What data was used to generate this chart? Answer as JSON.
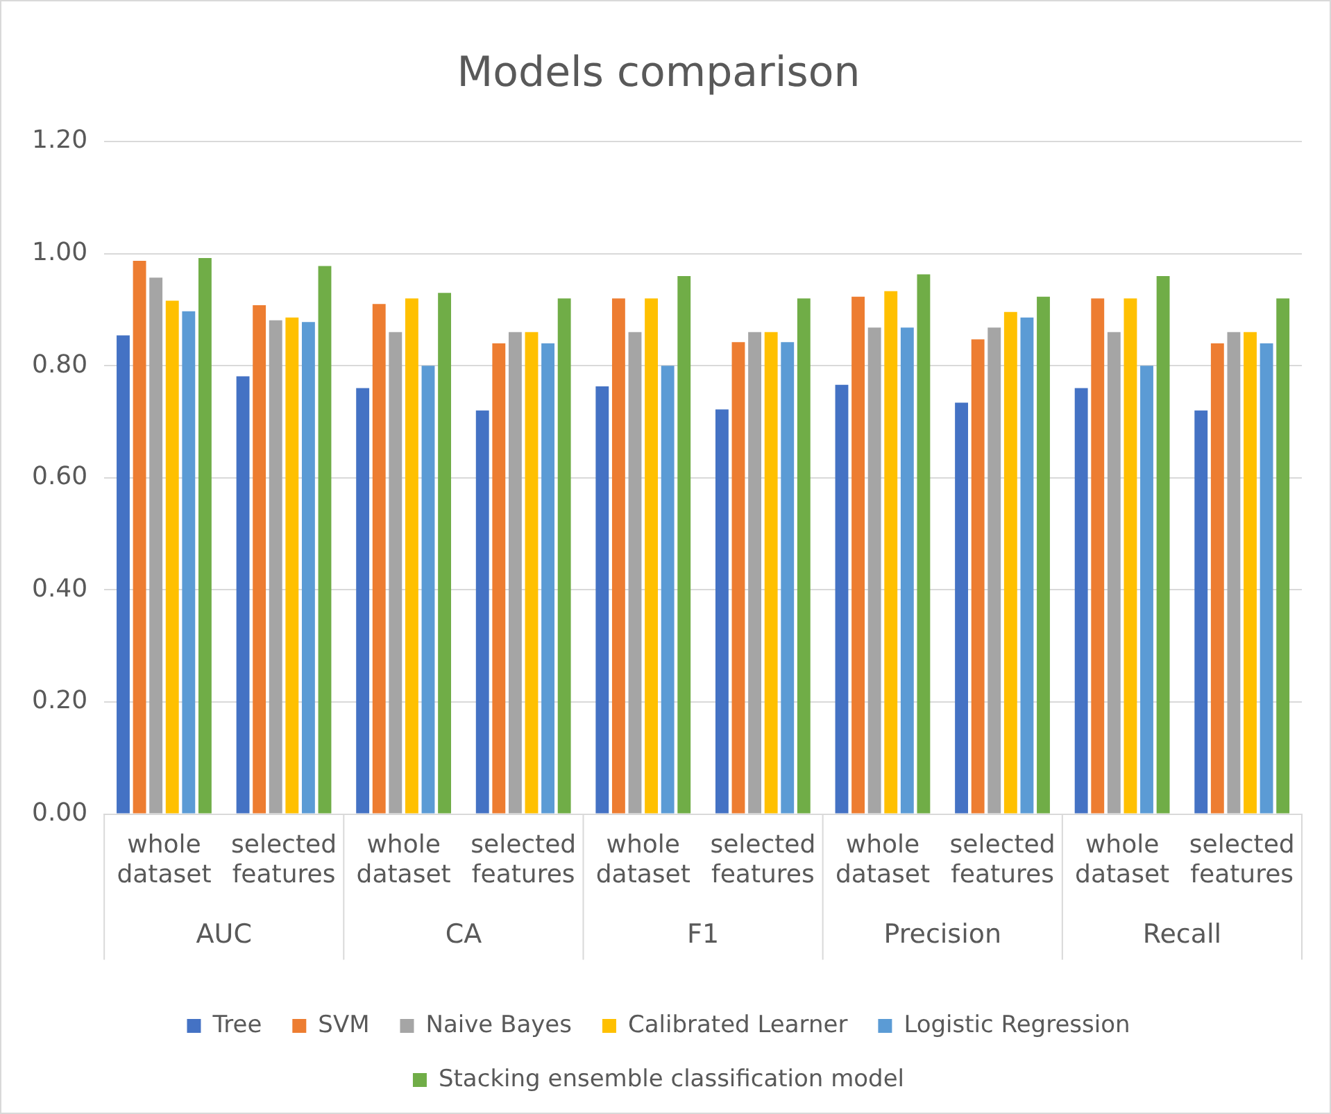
{
  "chart_data": {
    "type": "bar",
    "title": "Models comparison",
    "categories": [
      "whole dataset",
      "selected features",
      "whole dataset",
      "selected features",
      "whole dataset",
      "selected features",
      "whole dataset",
      "selected features",
      "whole dataset",
      "selected features"
    ],
    "annotations": [
      "AUC",
      "CA",
      "F1",
      "Precision",
      "Recall"
    ],
    "series": [
      {
        "name": "Tree",
        "color": "#4472c4",
        "values": [
          0.854,
          0.781,
          0.76,
          0.72,
          0.763,
          0.722,
          0.766,
          0.734,
          0.76,
          0.72
        ]
      },
      {
        "name": "SVM",
        "color": "#ed7d31",
        "values": [
          0.987,
          0.908,
          0.91,
          0.84,
          0.92,
          0.842,
          0.923,
          0.847,
          0.92,
          0.84
        ]
      },
      {
        "name": "Naive Bayes",
        "color": "#a5a5a5",
        "values": [
          0.957,
          0.881,
          0.86,
          0.86,
          0.86,
          0.86,
          0.868,
          0.868,
          0.86,
          0.86
        ]
      },
      {
        "name": "Calibrated Learner",
        "color": "#ffc000",
        "values": [
          0.916,
          0.886,
          0.92,
          0.86,
          0.92,
          0.86,
          0.933,
          0.896,
          0.92,
          0.86
        ]
      },
      {
        "name": "Logistic Regression",
        "color": "#5b9bd5",
        "values": [
          0.897,
          0.878,
          0.8,
          0.84,
          0.8,
          0.842,
          0.868,
          0.886,
          0.8,
          0.84
        ]
      },
      {
        "name": "Stacking ensemble classification model",
        "color": "#70ad47",
        "values": [
          0.992,
          0.978,
          0.93,
          0.92,
          0.96,
          0.92,
          0.963,
          0.923,
          0.96,
          0.92
        ]
      }
    ],
    "ylim": [
      0,
      1.2
    ],
    "yticks": [
      {
        "value": 0,
        "label": "0.00"
      },
      {
        "value": 0.2,
        "label": "0.20"
      },
      {
        "value": 0.4,
        "label": "0.40"
      },
      {
        "value": 0.6,
        "label": "0.60"
      },
      {
        "value": 0.8,
        "label": "0.80"
      },
      {
        "value": 1.0,
        "label": "1.00"
      },
      {
        "value": 1.2,
        "label": "1.20"
      }
    ],
    "grid": "y",
    "legend": "bottom"
  }
}
